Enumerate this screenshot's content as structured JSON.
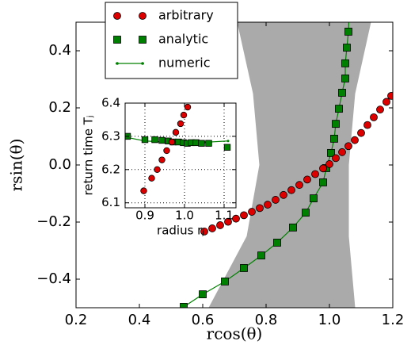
{
  "chart_data": [
    {
      "type": "line",
      "xlabel": "rcos(θ)",
      "ylabel": "rsin(θ)",
      "xlim": [
        0.2,
        1.2
      ],
      "ylim": [
        -0.5,
        0.5
      ],
      "xticks": [
        0.2,
        0.4,
        0.6,
        0.8,
        {
          "value": 1,
          "label": "1.0"
        },
        1.2
      ],
      "yticks": [
        {
          "value": -0.4,
          "label": "−0.4"
        },
        {
          "value": -0.2,
          "label": "−0.2"
        },
        {
          "value": 0,
          "label": "0.0"
        },
        0.2,
        0.4
      ],
      "grid": false,
      "legend": "upper left",
      "band": {
        "color": "#aaaaaa",
        "y": [
          -0.5,
          -0.25,
          0,
          0.25,
          0.5
        ],
        "x_left": [
          0.62,
          0.74,
          0.78,
          0.76,
          0.71
        ],
        "x_right": [
          1.08,
          1.06,
          1.06,
          1.08,
          1.13
        ]
      },
      "series": [
        {
          "name": "arbitrary",
          "color": "#dd0000",
          "marker": "circle",
          "line": false,
          "x": [
            0.605,
            0.63,
            0.655,
            0.68,
            0.705,
            0.73,
            0.755,
            0.78,
            0.805,
            0.83,
            0.855,
            0.88,
            0.905,
            0.93,
            0.955,
            0.98,
            1.0,
            1.02,
            1.04,
            1.06,
            1.08,
            1.1,
            1.12,
            1.14,
            1.16,
            1.18,
            1.195
          ],
          "values": [
            -0.233,
            -0.222,
            -0.211,
            -0.199,
            -0.188,
            -0.176,
            -0.164,
            -0.151,
            -0.139,
            -0.122,
            -0.105,
            -0.088,
            -0.07,
            -0.051,
            -0.032,
            -0.012,
            0.003,
            0.024,
            0.045,
            0.066,
            0.087,
            0.112,
            0.14,
            0.167,
            0.194,
            0.221,
            0.242
          ]
        },
        {
          "name": "analytic",
          "color": "#008000",
          "marker": "square",
          "line": false,
          "x": [
            0.54,
            0.6,
            0.67,
            0.73,
            0.785,
            0.835,
            0.885,
            0.925,
            0.95,
            0.98,
            0.99,
            1.005,
            1.015,
            1.02,
            1.03,
            1.04,
            1.05,
            1.05,
            1.055,
            1.06
          ],
          "values": [
            -0.497,
            -0.453,
            -0.408,
            -0.361,
            -0.317,
            -0.272,
            -0.219,
            -0.167,
            -0.117,
            -0.061,
            -0.011,
            0.042,
            0.092,
            0.144,
            0.197,
            0.253,
            0.303,
            0.356,
            0.411,
            0.467
          ]
        },
        {
          "name": "numeric",
          "color": "#008000",
          "marker": "dot",
          "line": true,
          "x": [
            0.5,
            0.54,
            0.6,
            0.67,
            0.73,
            0.785,
            0.835,
            0.885,
            0.925,
            0.95,
            0.98,
            0.99,
            1.005,
            1.015,
            1.02,
            1.03,
            1.04,
            1.05,
            1.05,
            1.055,
            1.06,
            1.062
          ],
          "values": [
            -0.52,
            -0.497,
            -0.453,
            -0.408,
            -0.361,
            -0.317,
            -0.272,
            -0.219,
            -0.167,
            -0.117,
            -0.061,
            -0.011,
            0.042,
            0.092,
            0.144,
            0.197,
            0.253,
            0.303,
            0.356,
            0.411,
            0.467,
            0.52
          ]
        }
      ]
    },
    {
      "type": "line",
      "xlabel": "radius rⱼ",
      "ylabel": "return time Tⱼ",
      "xlim": [
        0.85,
        1.13
      ],
      "ylim": [
        6.085,
        6.4
      ],
      "xticks": [
        0.9,
        {
          "value": 1,
          "label": "1.0"
        },
        1.1
      ],
      "yticks": [
        6.1,
        6.2,
        6.3,
        6.4
      ],
      "grid": true,
      "series": [
        {
          "color": "#dd0000",
          "marker": "circle",
          "line": false,
          "x": [
            0.897,
            0.917,
            0.931,
            0.943,
            0.955,
            0.968,
            0.978,
            0.99,
            0.998,
            1.008
          ],
          "values": [
            6.136,
            6.174,
            6.2,
            6.229,
            6.257,
            6.283,
            6.312,
            6.338,
            6.364,
            6.388
          ]
        },
        {
          "color": "#008000",
          "marker": "square",
          "line": false,
          "x": [
            0.856,
            0.9,
            0.925,
            0.943,
            0.959,
            0.971,
            0.985,
            0.997,
            1.007,
            1.017,
            1.029,
            1.043,
            1.061,
            1.108
          ],
          "values": [
            6.3,
            6.29,
            6.29,
            6.288,
            6.286,
            6.283,
            6.283,
            6.281,
            6.279,
            6.281,
            6.281,
            6.279,
            6.279,
            6.267
          ]
        },
        {
          "color": "#008000",
          "marker": "dot",
          "line": true,
          "x": [
            0.854,
            0.9,
            0.95,
            1.0,
            1.05,
            1.11
          ],
          "values": [
            6.297,
            6.286,
            6.283,
            6.282,
            6.282,
            6.286
          ]
        }
      ]
    }
  ]
}
